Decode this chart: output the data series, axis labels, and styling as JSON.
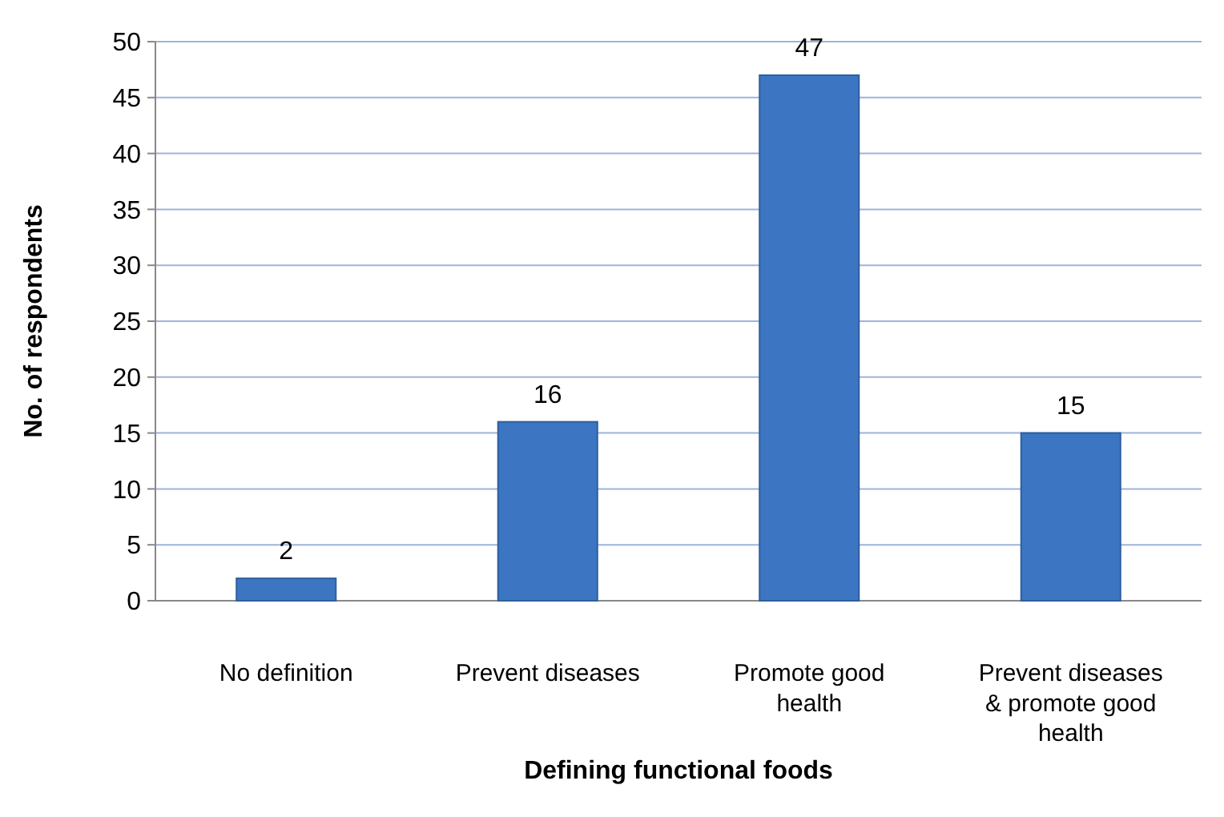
{
  "chart_data": {
    "type": "bar",
    "xlabel": "Defining functional foods",
    "ylabel": "No. of respondents",
    "categories": [
      "No definition",
      "Prevent diseases",
      "Promote good health",
      "Prevent diseases & promote good health"
    ],
    "values": [
      2,
      16,
      47,
      15
    ],
    "color": "#3c76c3",
    "data_labels": true,
    "grid": "y",
    "ylim": [
      0,
      50
    ],
    "yticks": [
      0,
      5,
      10,
      15,
      20,
      25,
      30,
      35,
      40,
      45,
      50
    ]
  }
}
